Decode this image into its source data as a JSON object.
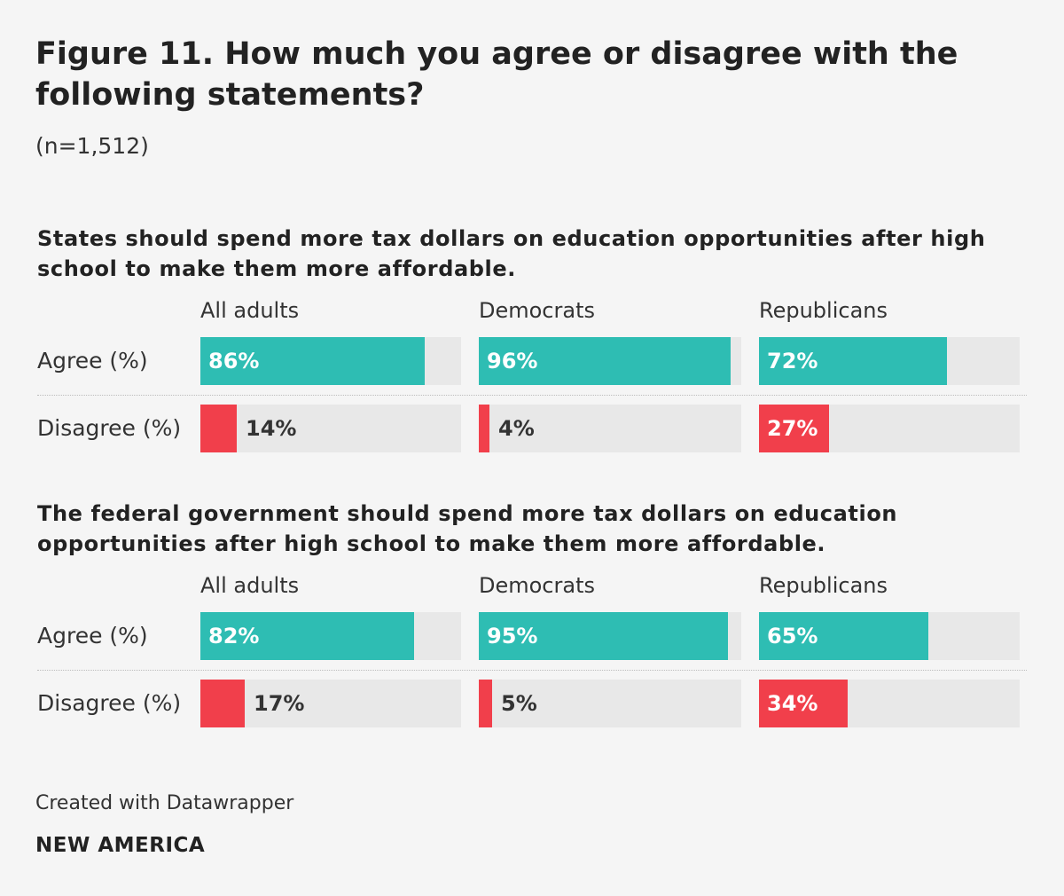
{
  "header": {
    "title": "Figure 11. How much you agree or disagree with the following statements?",
    "subtitle": "(n=1,512)"
  },
  "colors": {
    "agree": "#2ebdb3",
    "disagree": "#f13f4b",
    "track": "#e8e8e8"
  },
  "chart_data": {
    "type": "bar",
    "title": "Figure 11. How much you agree or disagree with the following statements?",
    "subtitle": "(n=1,512)",
    "unit": "%",
    "ylim": [
      0,
      100
    ],
    "panels": [
      {
        "statement": "States should spend more tax dollars on education opportunities after high school to make them more affordable.",
        "columns": [
          "All adults",
          "Democrats",
          "Republicans"
        ],
        "rows": [
          {
            "label": "Agree (%)",
            "key": "agree",
            "values": [
              86,
              96,
              72
            ],
            "value_labels": [
              "86%",
              "96%",
              "72%"
            ]
          },
          {
            "label": "Disagree (%)",
            "key": "disagree",
            "values": [
              14,
              4,
              27
            ],
            "value_labels": [
              "14%",
              "4%",
              "27%"
            ]
          }
        ]
      },
      {
        "statement": "The federal government should spend more tax dollars on education opportunities after high school to make them more affordable.",
        "columns": [
          "All adults",
          "Democrats",
          "Republicans"
        ],
        "rows": [
          {
            "label": "Agree (%)",
            "key": "agree",
            "values": [
              82,
              95,
              65
            ],
            "value_labels": [
              "82%",
              "95%",
              "65%"
            ]
          },
          {
            "label": "Disagree (%)",
            "key": "disagree",
            "values": [
              17,
              5,
              34
            ],
            "value_labels": [
              "17%",
              "5%",
              "34%"
            ]
          }
        ]
      }
    ]
  },
  "footer": {
    "credit": "Created with Datawrapper",
    "brand": "NEW AMERICA"
  }
}
